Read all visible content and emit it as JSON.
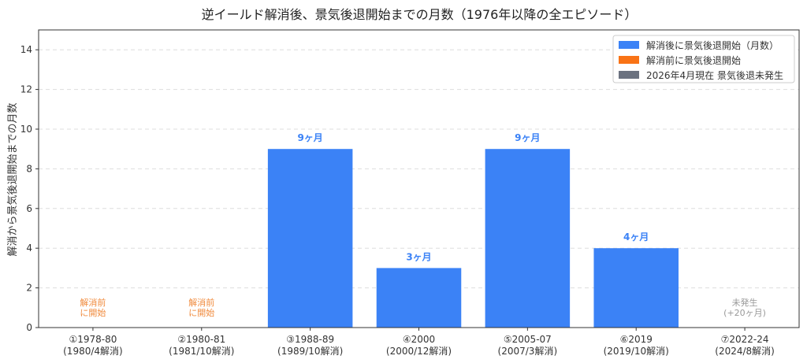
{
  "chart_data": {
    "type": "bar",
    "title": "逆イールド解消後、景気後退開始までの月数（1976年以降の全エピソード）",
    "xlabel": "",
    "ylabel": "解消から景気後退開始までの月数",
    "ylim": [
      0,
      15
    ],
    "yticks": [
      0,
      2,
      4,
      6,
      8,
      10,
      12,
      14
    ],
    "grid": true,
    "legend_position": "top-right",
    "categories": [
      [
        "①1978-80",
        "(1980/4解消)"
      ],
      [
        "②1980-81",
        "(1981/10解消)"
      ],
      [
        "③1988-89",
        "(1989/10解消)"
      ],
      [
        "④2000",
        "(2000/12解消)"
      ],
      [
        "⑤2005-07",
        "(2007/3解消)"
      ],
      [
        "⑥2019",
        "(2019/10解消)"
      ],
      [
        "⑦2022-24",
        "(2024/8解消)"
      ]
    ],
    "values": [
      0,
      0,
      9,
      3,
      9,
      4,
      0
    ],
    "bar_labels": [
      "",
      "",
      "9ヶ月",
      "3ヶ月",
      "9ヶ月",
      "4ヶ月",
      ""
    ],
    "annotations": [
      {
        "index": 0,
        "lines": [
          "解消前",
          "に開始"
        ],
        "color": "#f08a3c"
      },
      {
        "index": 1,
        "lines": [
          "解消前",
          "に開始"
        ],
        "color": "#f08a3c"
      },
      {
        "index": 6,
        "lines": [
          "未発生",
          "(+20ヶ月)"
        ],
        "color": "#999999"
      }
    ],
    "legend": [
      {
        "label": "解消後に景気後退開始（月数）",
        "color": "#3b82f6"
      },
      {
        "label": "解消前に景気後退開始",
        "color": "#f97316"
      },
      {
        "label": "2026年4月現在 景気後退未発生",
        "color": "#6b7280"
      }
    ],
    "colors": {
      "bar": "#3b82f6",
      "bar_label": "#3b82f6",
      "grid": "#dddddd",
      "axis": "#333333"
    }
  }
}
